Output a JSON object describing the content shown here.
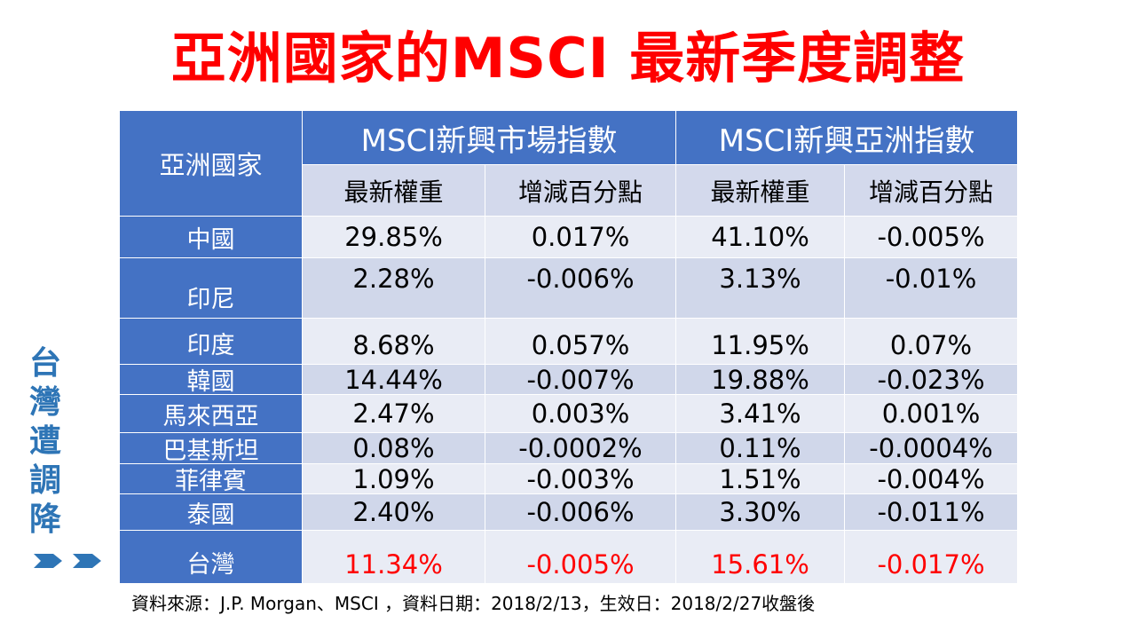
{
  "title": "亞洲國家的MSCI 最新季度調整",
  "table": {
    "corner": "亞洲國家",
    "group1": "MSCI新興市場指數",
    "group2": "MSCI新興亞洲指數",
    "sub1": "最新權重",
    "sub2": "增減百分點",
    "sub3": "最新權重",
    "sub4": "增減百分點",
    "rows": [
      {
        "country": "中國",
        "em_weight": "29.85%",
        "em_change": "0.017%",
        "asia_weight": "41.10%",
        "asia_change": "-0.005%"
      },
      {
        "country": "印尼",
        "em_weight": "2.28%",
        "em_change": "-0.006%",
        "asia_weight": "3.13%",
        "asia_change": "-0.01%"
      },
      {
        "country": "印度",
        "em_weight": "8.68%",
        "em_change": "0.057%",
        "asia_weight": "11.95%",
        "asia_change": "0.07%"
      },
      {
        "country": "韓國",
        "em_weight": "14.44%",
        "em_change": "-0.007%",
        "asia_weight": "19.88%",
        "asia_change": "-0.023%"
      },
      {
        "country": "馬來西亞",
        "em_weight": "2.47%",
        "em_change": "0.003%",
        "asia_weight": "3.41%",
        "asia_change": "0.001%"
      },
      {
        "country": "巴基斯坦",
        "em_weight": "0.08%",
        "em_change": "-0.0002%",
        "asia_weight": "0.11%",
        "asia_change": "-0.0004%"
      },
      {
        "country": "菲律賓",
        "em_weight": "1.09%",
        "em_change": "-0.003%",
        "asia_weight": "1.51%",
        "asia_change": "-0.004%"
      },
      {
        "country": "泰國",
        "em_weight": "2.40%",
        "em_change": "-0.006%",
        "asia_weight": "3.30%",
        "asia_change": "-0.011%"
      },
      {
        "country": "台灣",
        "em_weight": "11.34%",
        "em_change": "-0.005%",
        "asia_weight": "15.61%",
        "asia_change": "-0.017%"
      }
    ]
  },
  "side_label": [
    "台",
    "灣",
    "遭",
    "調",
    "降"
  ],
  "source": "資料來源：J.P. Morgan、MSCI ，資料日期：2018/2/13，生效日：2018/2/27收盤後",
  "colors": {
    "title": "#ff0000",
    "header_bg": "#4472c4",
    "highlight": "#ff0000",
    "side_label": "#2e75b6"
  }
}
